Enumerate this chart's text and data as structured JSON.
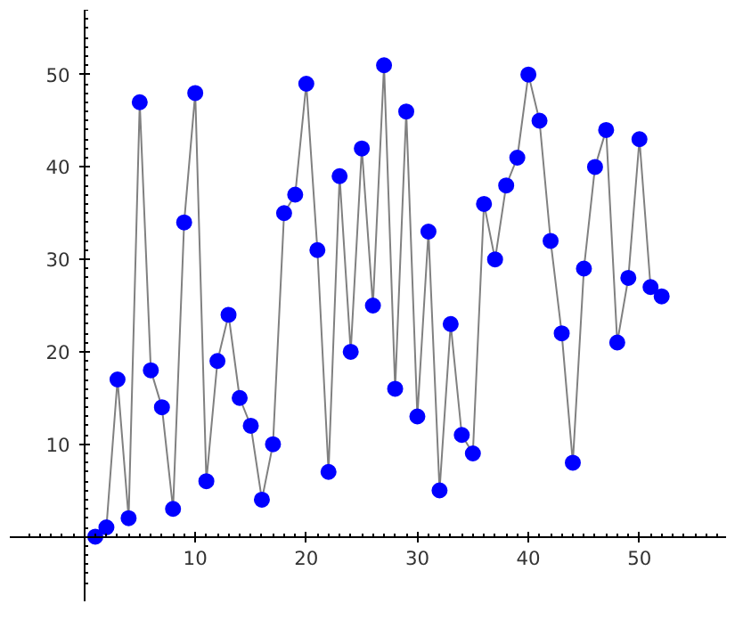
{
  "chart_data": {
    "type": "line",
    "marker": "circle",
    "line_style": "solid",
    "grid": false,
    "x": [
      1,
      2,
      3,
      4,
      5,
      6,
      7,
      8,
      9,
      10,
      11,
      12,
      13,
      14,
      15,
      16,
      17,
      18,
      19,
      20,
      21,
      22,
      23,
      24,
      25,
      26,
      27,
      28,
      29,
      30,
      31,
      32,
      33,
      34,
      35,
      36,
      37,
      38,
      39,
      40,
      41,
      42,
      43,
      44,
      45,
      46,
      47,
      48,
      49,
      50,
      51,
      52
    ],
    "series": [
      {
        "color": "#0000ff",
        "values": [
          0,
          1,
          17,
          2,
          47,
          18,
          14,
          3,
          34,
          48,
          6,
          19,
          24,
          15,
          12,
          4,
          10,
          35,
          37,
          49,
          31,
          7,
          39,
          20,
          42,
          25,
          51,
          16,
          46,
          13,
          33,
          5,
          23,
          11,
          9,
          36,
          30,
          38,
          41,
          50,
          45,
          32,
          22,
          8,
          29,
          40,
          44,
          21,
          28,
          43,
          27,
          26
        ]
      }
    ],
    "xlim": [
      -6.7,
      57.8
    ],
    "ylim": [
      -7,
      57
    ],
    "xticks": [
      10,
      20,
      30,
      40,
      50
    ],
    "yticks": [
      10,
      20,
      30,
      40,
      50
    ]
  }
}
